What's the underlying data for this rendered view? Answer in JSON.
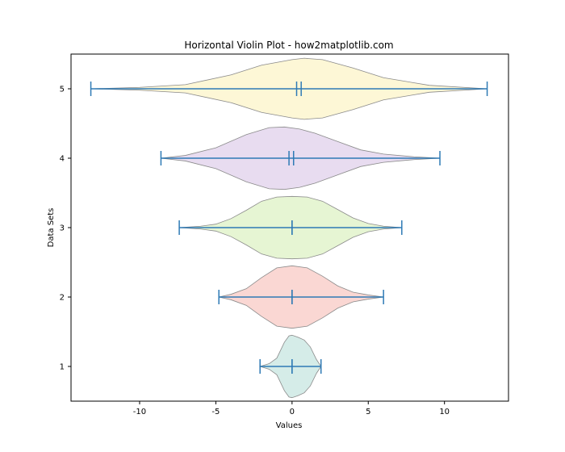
{
  "chart_data": {
    "type": "violin",
    "orientation": "horizontal",
    "title": "Horizontal Violin Plot - how2matplotlib.com",
    "xlabel": "Values",
    "ylabel": "Data Sets",
    "xlim": [
      -14.5,
      14.2
    ],
    "ylim": [
      0.5,
      5.5
    ],
    "xticks": [
      -10,
      -5,
      0,
      5,
      10
    ],
    "yticks": [
      1,
      2,
      3,
      4,
      5
    ],
    "grid": false,
    "series": [
      {
        "position": 1,
        "min": -2.1,
        "max": 1.9,
        "mean": 0.0,
        "median": 0.0,
        "color": "#b3dcd6",
        "profile": [
          [
            -2.1,
            0.0
          ],
          [
            -1.5,
            0.04
          ],
          [
            -1.0,
            0.12
          ],
          [
            -0.5,
            0.35
          ],
          [
            -0.2,
            0.44
          ],
          [
            0.0,
            0.45
          ],
          [
            0.4,
            0.42
          ],
          [
            0.8,
            0.38
          ],
          [
            1.2,
            0.28
          ],
          [
            1.6,
            0.1
          ],
          [
            1.9,
            0.0
          ]
        ]
      },
      {
        "position": 2,
        "min": -4.8,
        "max": 6.0,
        "mean": 0.0,
        "median": 0.0,
        "color": "#f6b7ae",
        "profile": [
          [
            -4.8,
            0.0
          ],
          [
            -4.0,
            0.04
          ],
          [
            -3.0,
            0.12
          ],
          [
            -2.0,
            0.28
          ],
          [
            -1.0,
            0.42
          ],
          [
            0.0,
            0.45
          ],
          [
            1.0,
            0.42
          ],
          [
            2.0,
            0.3
          ],
          [
            3.0,
            0.16
          ],
          [
            4.0,
            0.07
          ],
          [
            5.0,
            0.03
          ],
          [
            6.0,
            0.0
          ]
        ]
      },
      {
        "position": 3,
        "min": -7.4,
        "max": 7.2,
        "mean": 0.0,
        "median": 0.0,
        "color": "#d2ecaf",
        "profile": [
          [
            -7.4,
            0.0
          ],
          [
            -6.0,
            0.02
          ],
          [
            -5.0,
            0.05
          ],
          [
            -4.0,
            0.13
          ],
          [
            -3.0,
            0.25
          ],
          [
            -2.0,
            0.38
          ],
          [
            -1.0,
            0.44
          ],
          [
            0.0,
            0.45
          ],
          [
            1.0,
            0.44
          ],
          [
            2.0,
            0.38
          ],
          [
            3.0,
            0.26
          ],
          [
            4.0,
            0.14
          ],
          [
            5.0,
            0.06
          ],
          [
            6.0,
            0.02
          ],
          [
            7.2,
            0.0
          ]
        ]
      },
      {
        "position": 4,
        "min": -8.6,
        "max": 9.7,
        "mean": -0.2,
        "median": 0.1,
        "color": "#d6bfe3",
        "profile": [
          [
            -8.6,
            0.0
          ],
          [
            -7.0,
            0.04
          ],
          [
            -5.0,
            0.15
          ],
          [
            -3.0,
            0.34
          ],
          [
            -1.5,
            0.44
          ],
          [
            -0.5,
            0.45
          ],
          [
            0.5,
            0.42
          ],
          [
            1.5,
            0.36
          ],
          [
            3.0,
            0.24
          ],
          [
            4.5,
            0.12
          ],
          [
            6.0,
            0.06
          ],
          [
            8.0,
            0.02
          ],
          [
            9.7,
            0.0
          ]
        ]
      },
      {
        "position": 5,
        "min": -13.2,
        "max": 12.8,
        "mean": 0.3,
        "median": 0.6,
        "color": "#fbf0b5",
        "profile": [
          [
            -13.2,
            0.0
          ],
          [
            -10.0,
            0.02
          ],
          [
            -7.0,
            0.06
          ],
          [
            -4.0,
            0.2
          ],
          [
            -2.0,
            0.34
          ],
          [
            0.0,
            0.42
          ],
          [
            0.8,
            0.44
          ],
          [
            2.0,
            0.42
          ],
          [
            4.0,
            0.3
          ],
          [
            6.0,
            0.16
          ],
          [
            9.0,
            0.05
          ],
          [
            12.8,
            0.0
          ]
        ]
      }
    ]
  }
}
